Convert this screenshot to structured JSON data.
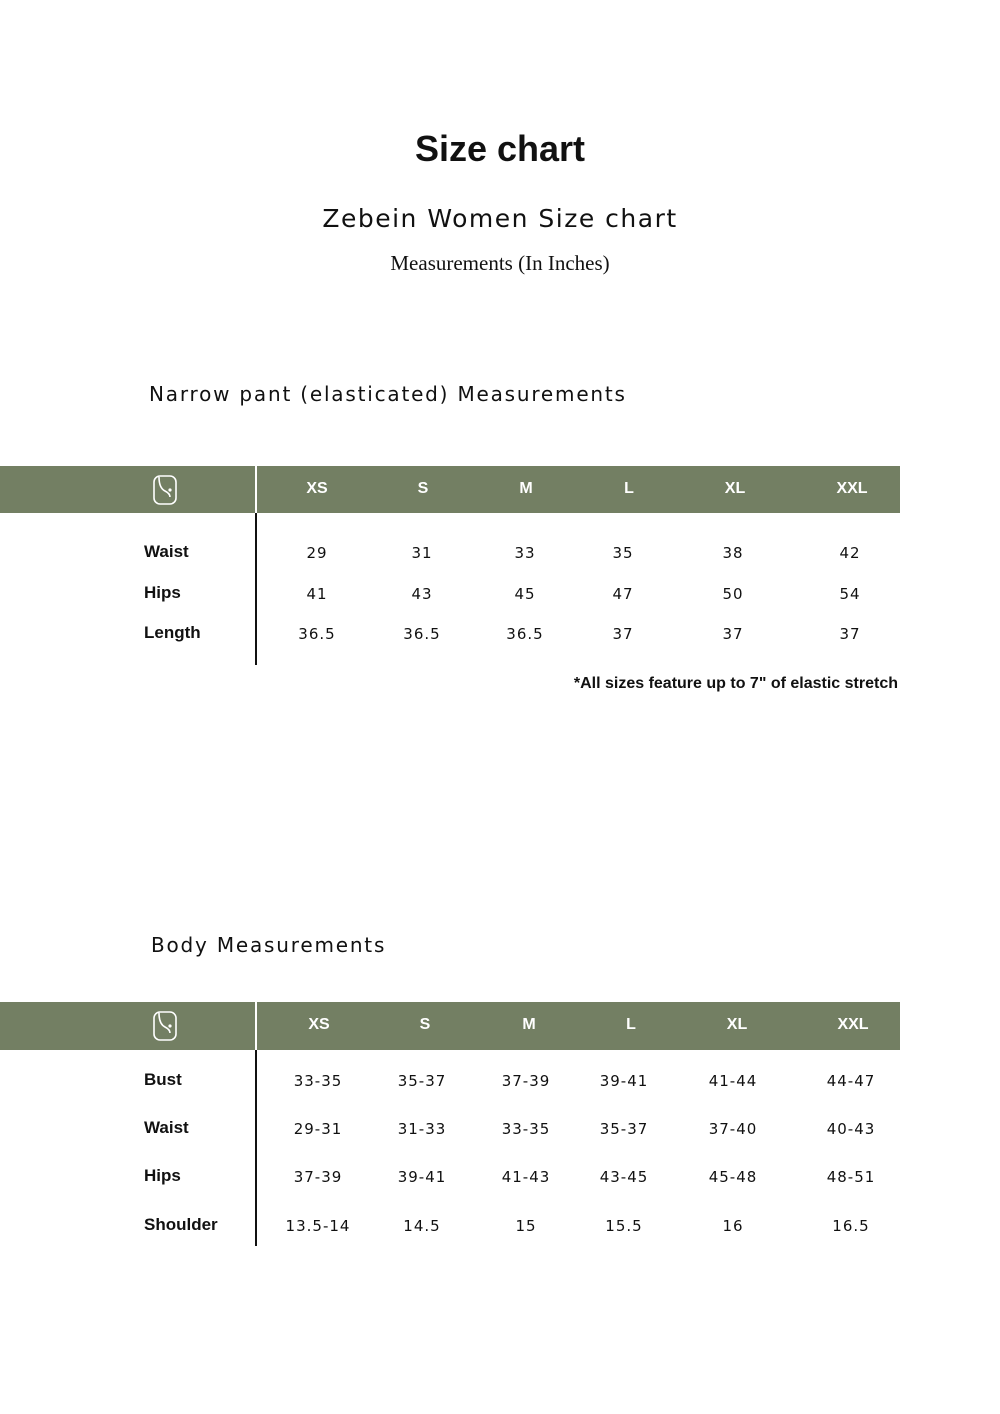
{
  "title": "Size chart",
  "subtitle": "Zebein Women Size chart",
  "measurements_note": "Measurements (In Inches)",
  "header_color": "#737f63",
  "tables": [
    {
      "heading": "Narrow pant (elasticated) Measurements",
      "icon": "measuring-tape-icon",
      "sizes": [
        "XS",
        "S",
        "M",
        "L",
        "XL",
        "XXL"
      ],
      "rows": [
        {
          "label": "Waist",
          "values": [
            "29",
            "31",
            "33",
            "35",
            "38",
            "42"
          ]
        },
        {
          "label": "Hips",
          "values": [
            "41",
            "43",
            "45",
            "47",
            "50",
            "54"
          ]
        },
        {
          "label": "Length",
          "values": [
            "36.5",
            "36.5",
            "36.5",
            "37",
            "37",
            "37"
          ]
        }
      ],
      "footnote": "*All sizes feature up to 7\" of elastic stretch"
    },
    {
      "heading": "Body Measurements",
      "icon": "measuring-tape-icon",
      "sizes": [
        "XS",
        "S",
        "M",
        "L",
        "XL",
        "XXL"
      ],
      "rows": [
        {
          "label": "Bust",
          "values": [
            "33-35",
            "35-37",
            "37-39",
            "39-41",
            "41-44",
            "44-47"
          ]
        },
        {
          "label": "Waist",
          "values": [
            "29-31",
            "31-33",
            "33-35",
            "35-37",
            "37-40",
            "40-43"
          ]
        },
        {
          "label": "Hips",
          "values": [
            "37-39",
            "39-41",
            "41-43",
            "43-45",
            "45-48",
            "48-51"
          ]
        },
        {
          "label": "Shoulder",
          "values": [
            "13.5-14",
            "14.5",
            "15",
            "15.5",
            "16",
            "16.5"
          ]
        }
      ]
    }
  ]
}
